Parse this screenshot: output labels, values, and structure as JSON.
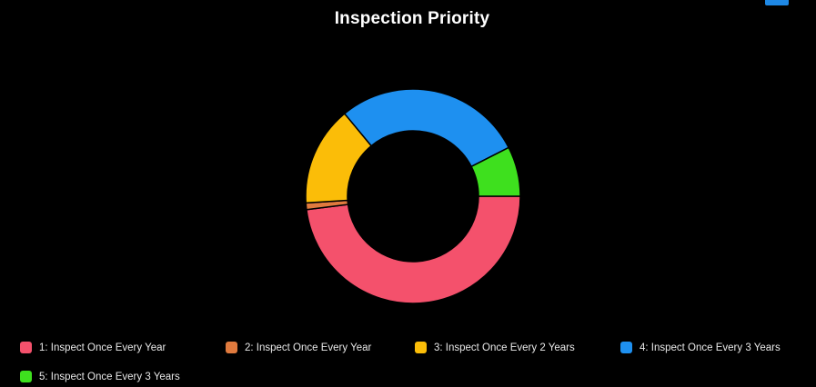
{
  "title": "Inspection Priority",
  "chart_data": {
    "type": "pie",
    "donut": true,
    "title": "Inspection Priority",
    "legend_position": "bottom",
    "series": [
      {
        "name": "1: Inspect Once Every Year",
        "value": 48.0,
        "color": "#f4516c"
      },
      {
        "name": "2: Inspect Once Every Year",
        "value": 1.0,
        "color": "#e07a3e"
      },
      {
        "name": "3: Inspect Once Every 2 Years",
        "value": 15.0,
        "color": "#fbbd08"
      },
      {
        "name": "4: Inspect Once Every 3 Years",
        "value": 28.5,
        "color": "#1e90f0"
      },
      {
        "name": "5: Inspect Once Every 3 Years",
        "value": 7.5,
        "color": "#3ee01e"
      }
    ]
  }
}
